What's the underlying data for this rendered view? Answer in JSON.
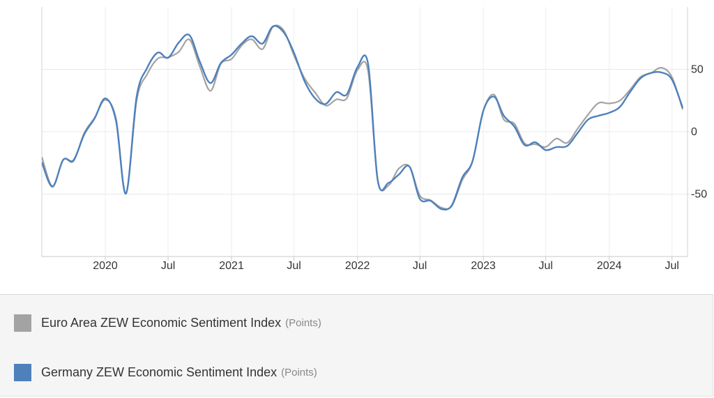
{
  "chart_data": {
    "type": "line",
    "title": "",
    "xlabel": "",
    "ylabel": "",
    "x_range": [
      "2019-07-01",
      "2024-08-15"
    ],
    "ylim": [
      -100,
      100
    ],
    "y_ticks": [
      50,
      0,
      -50
    ],
    "y_axis_side": "right",
    "x_ticks": [
      {
        "date": "2020-01-01",
        "label": "2020"
      },
      {
        "date": "2020-07-01",
        "label": "Jul"
      },
      {
        "date": "2021-01-01",
        "label": "2021"
      },
      {
        "date": "2021-07-01",
        "label": "Jul"
      },
      {
        "date": "2022-01-01",
        "label": "2022"
      },
      {
        "date": "2022-07-01",
        "label": "Jul"
      },
      {
        "date": "2023-01-01",
        "label": "2023"
      },
      {
        "date": "2023-07-01",
        "label": "Jul"
      },
      {
        "date": "2024-01-01",
        "label": "2024"
      },
      {
        "date": "2024-07-01",
        "label": "Jul"
      }
    ],
    "grid": true,
    "legend_position": "bottom",
    "series": [
      {
        "name": "Euro Area ZEW Economic Sentiment Index",
        "unit": "(Points)",
        "color": "#a3a3a3",
        "points": [
          [
            "2019-07-01",
            -20.3
          ],
          [
            "2019-08-01",
            -43.6
          ],
          [
            "2019-09-01",
            -22.4
          ],
          [
            "2019-10-01",
            -23.5
          ],
          [
            "2019-11-01",
            -1.0
          ],
          [
            "2019-12-01",
            11.2
          ],
          [
            "2020-01-01",
            25.6
          ],
          [
            "2020-02-01",
            10.4
          ],
          [
            "2020-03-01",
            -49.5
          ],
          [
            "2020-04-01",
            25.2
          ],
          [
            "2020-05-01",
            46.0
          ],
          [
            "2020-06-01",
            58.6
          ],
          [
            "2020-07-01",
            59.6
          ],
          [
            "2020-08-01",
            64.0
          ],
          [
            "2020-09-01",
            73.9
          ],
          [
            "2020-10-01",
            52.3
          ],
          [
            "2020-11-01",
            32.8
          ],
          [
            "2020-12-01",
            54.4
          ],
          [
            "2021-01-01",
            58.3
          ],
          [
            "2021-02-01",
            69.6
          ],
          [
            "2021-03-01",
            74.0
          ],
          [
            "2021-04-01",
            66.3
          ],
          [
            "2021-05-01",
            84.0
          ],
          [
            "2021-06-01",
            81.3
          ],
          [
            "2021-07-01",
            61.2
          ],
          [
            "2021-08-01",
            42.7
          ],
          [
            "2021-09-01",
            31.1
          ],
          [
            "2021-10-01",
            21.0
          ],
          [
            "2021-11-01",
            25.9
          ],
          [
            "2021-12-01",
            26.8
          ],
          [
            "2022-01-01",
            49.4
          ],
          [
            "2022-02-01",
            48.6
          ],
          [
            "2022-03-01",
            -38.7
          ],
          [
            "2022-04-01",
            -43.0
          ],
          [
            "2022-05-01",
            -29.5
          ],
          [
            "2022-06-01",
            -28.0
          ],
          [
            "2022-07-01",
            -51.1
          ],
          [
            "2022-08-01",
            -54.9
          ],
          [
            "2022-09-01",
            -60.7
          ],
          [
            "2022-10-01",
            -59.7
          ],
          [
            "2022-11-01",
            -38.7
          ],
          [
            "2022-12-01",
            -23.6
          ],
          [
            "2023-01-01",
            16.7
          ],
          [
            "2023-02-01",
            29.7
          ],
          [
            "2023-03-01",
            10.0
          ],
          [
            "2023-04-01",
            6.4
          ],
          [
            "2023-05-01",
            -9.4
          ],
          [
            "2023-06-01",
            -10.0
          ],
          [
            "2023-07-01",
            -12.2
          ],
          [
            "2023-08-01",
            -5.5
          ],
          [
            "2023-09-01",
            -8.9
          ],
          [
            "2023-10-01",
            2.3
          ],
          [
            "2023-11-01",
            13.8
          ],
          [
            "2023-12-01",
            23.0
          ],
          [
            "2024-01-01",
            22.7
          ],
          [
            "2024-02-01",
            25.0
          ],
          [
            "2024-03-01",
            33.5
          ],
          [
            "2024-04-01",
            43.9
          ],
          [
            "2024-05-01",
            47.0
          ],
          [
            "2024-06-01",
            51.3
          ],
          [
            "2024-07-01",
            43.7
          ],
          [
            "2024-08-01",
            17.9
          ]
        ]
      },
      {
        "name": "Germany ZEW Economic Sentiment Index",
        "unit": "(Points)",
        "color": "#4e80bc",
        "points": [
          [
            "2019-07-01",
            -24.5
          ],
          [
            "2019-08-01",
            -44.1
          ],
          [
            "2019-09-01",
            -22.5
          ],
          [
            "2019-10-01",
            -22.8
          ],
          [
            "2019-11-01",
            -2.1
          ],
          [
            "2019-12-01",
            10.7
          ],
          [
            "2020-01-01",
            26.7
          ],
          [
            "2020-02-01",
            8.7
          ],
          [
            "2020-03-01",
            -49.5
          ],
          [
            "2020-04-01",
            28.2
          ],
          [
            "2020-05-01",
            51.0
          ],
          [
            "2020-06-01",
            63.4
          ],
          [
            "2020-07-01",
            59.3
          ],
          [
            "2020-08-01",
            71.5
          ],
          [
            "2020-09-01",
            77.4
          ],
          [
            "2020-10-01",
            56.1
          ],
          [
            "2020-11-01",
            39.0
          ],
          [
            "2020-12-01",
            55.0
          ],
          [
            "2021-01-01",
            61.8
          ],
          [
            "2021-02-01",
            71.2
          ],
          [
            "2021-03-01",
            76.6
          ],
          [
            "2021-04-01",
            70.7
          ],
          [
            "2021-05-01",
            84.4
          ],
          [
            "2021-06-01",
            79.8
          ],
          [
            "2021-07-01",
            63.3
          ],
          [
            "2021-08-01",
            40.4
          ],
          [
            "2021-09-01",
            26.5
          ],
          [
            "2021-10-01",
            22.3
          ],
          [
            "2021-11-01",
            31.7
          ],
          [
            "2021-12-01",
            29.9
          ],
          [
            "2022-01-01",
            51.7
          ],
          [
            "2022-02-01",
            54.3
          ],
          [
            "2022-03-01",
            -39.3
          ],
          [
            "2022-04-01",
            -41.0
          ],
          [
            "2022-05-01",
            -34.3
          ],
          [
            "2022-06-01",
            -28.0
          ],
          [
            "2022-07-01",
            -53.8
          ],
          [
            "2022-08-01",
            -55.3
          ],
          [
            "2022-09-01",
            -61.9
          ],
          [
            "2022-10-01",
            -59.2
          ],
          [
            "2022-11-01",
            -36.7
          ],
          [
            "2022-12-01",
            -23.3
          ],
          [
            "2023-01-01",
            16.9
          ],
          [
            "2023-02-01",
            28.1
          ],
          [
            "2023-03-01",
            13.0
          ],
          [
            "2023-04-01",
            4.1
          ],
          [
            "2023-05-01",
            -10.7
          ],
          [
            "2023-06-01",
            -8.5
          ],
          [
            "2023-07-01",
            -14.7
          ],
          [
            "2023-08-01",
            -12.3
          ],
          [
            "2023-09-01",
            -11.4
          ],
          [
            "2023-10-01",
            -1.1
          ],
          [
            "2023-11-01",
            9.8
          ],
          [
            "2023-12-01",
            12.8
          ],
          [
            "2024-01-01",
            15.2
          ],
          [
            "2024-02-01",
            19.9
          ],
          [
            "2024-03-01",
            31.7
          ],
          [
            "2024-04-01",
            42.9
          ],
          [
            "2024-05-01",
            47.1
          ],
          [
            "2024-06-01",
            47.5
          ],
          [
            "2024-07-01",
            41.8
          ],
          [
            "2024-08-01",
            19.2
          ]
        ]
      }
    ]
  },
  "legend": [
    {
      "label": "Euro Area ZEW Economic Sentiment Index",
      "unit": "(Points)",
      "color": "#a3a3a3"
    },
    {
      "label": "Germany ZEW Economic Sentiment Index",
      "unit": "(Points)",
      "color": "#4e80bc"
    }
  ]
}
